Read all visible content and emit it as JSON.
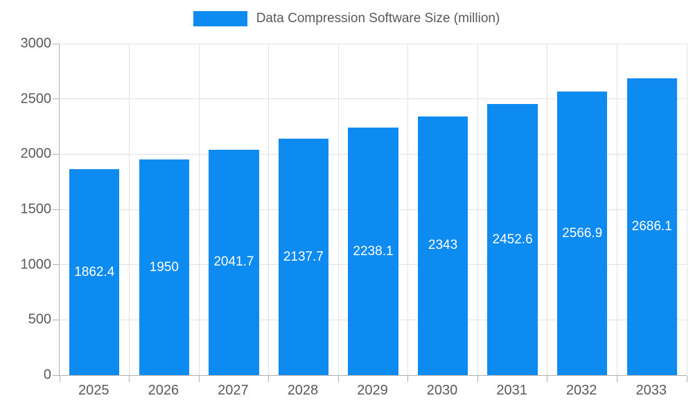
{
  "legend": {
    "label": "Data Compression Software Size (million)",
    "color": "#0d8bf0"
  },
  "chart_data": {
    "type": "bar",
    "title": "Data Compression Software Size (million)",
    "categories": [
      "2025",
      "2026",
      "2027",
      "2028",
      "2029",
      "2030",
      "2031",
      "2032",
      "2033"
    ],
    "values": [
      1862.4,
      1950,
      2041.7,
      2137.7,
      2238.1,
      2343,
      2452.6,
      2566.9,
      2686.1
    ],
    "xlabel": "",
    "ylabel": "",
    "ylim": [
      0,
      3000
    ],
    "yticks": [
      0,
      500,
      1000,
      1500,
      2000,
      2500,
      3000
    ],
    "bar_color": "#0d8bf0",
    "label_color": "#ffffff",
    "grid": true,
    "legend_position": "top"
  }
}
